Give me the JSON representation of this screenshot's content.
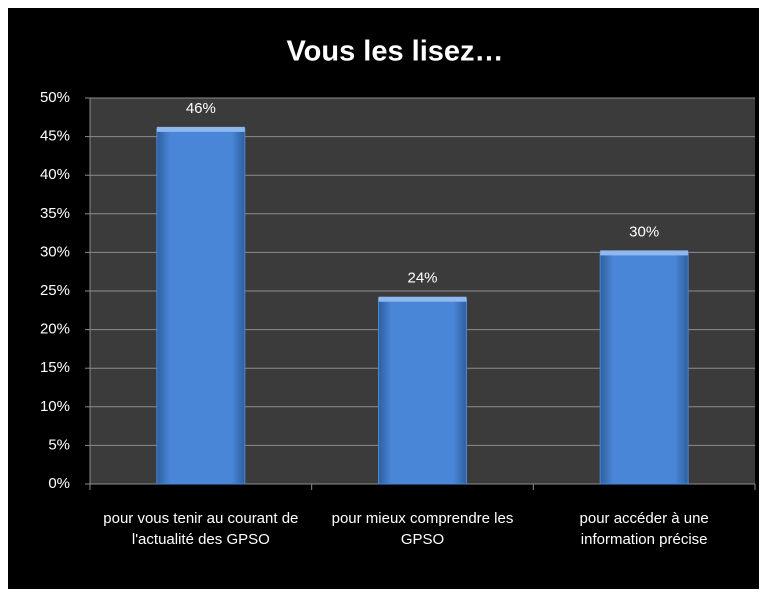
{
  "chart_data": {
    "type": "bar",
    "title": "Vous les lisez…",
    "categories": [
      "pour vous tenir au courant de l'actualité des GPSO",
      "pour mieux comprendre les GPSO",
      "pour accéder à une information précise"
    ],
    "values": [
      46,
      24,
      30
    ],
    "value_labels": [
      "46%",
      "24%",
      "30%"
    ],
    "color": "#4a86d8",
    "ylim": [
      0,
      50
    ],
    "yticks": [
      {
        "value": 0,
        "label": "0%"
      },
      {
        "value": 5,
        "label": "5%"
      },
      {
        "value": 10,
        "label": "10%"
      },
      {
        "value": 15,
        "label": "15%"
      },
      {
        "value": 20,
        "label": "20%"
      },
      {
        "value": 25,
        "label": "25%"
      },
      {
        "value": 30,
        "label": "30%"
      },
      {
        "value": 35,
        "label": "35%"
      },
      {
        "value": 40,
        "label": "40%"
      },
      {
        "value": 45,
        "label": "45%"
      },
      {
        "value": 50,
        "label": "50%"
      }
    ],
    "grid": true
  }
}
